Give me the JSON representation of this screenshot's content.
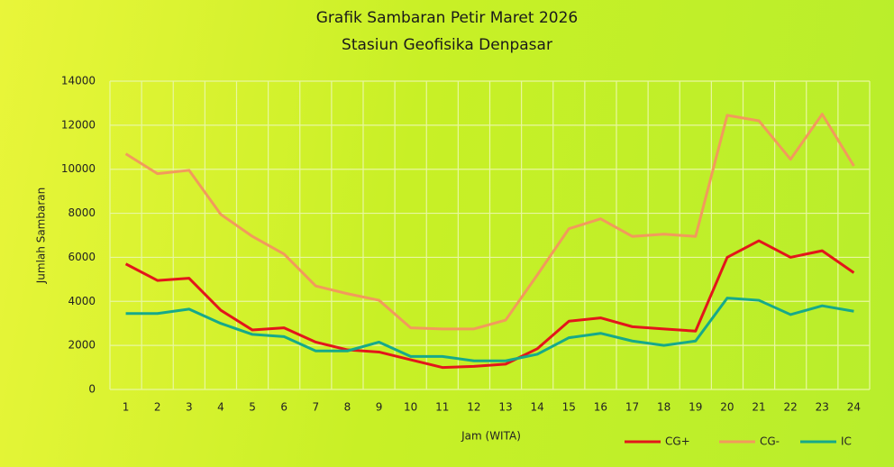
{
  "chart_data": {
    "type": "line",
    "title": "Grafik Sambaran Petir Maret 2026",
    "subtitle": "Stasiun Geofisika Denpasar",
    "x_label": "Jam (WITA)",
    "y_label": "Jumlah Sambaran",
    "categories": [
      "1",
      "2",
      "3",
      "4",
      "5",
      "6",
      "7",
      "8",
      "9",
      "10",
      "11",
      "12",
      "13",
      "14",
      "15",
      "16",
      "17",
      "18",
      "19",
      "20",
      "21",
      "22",
      "23",
      "24"
    ],
    "series": [
      {
        "name": "CG+",
        "color": "#e3161b",
        "values": [
          5700,
          4950,
          5050,
          3600,
          2700,
          2800,
          2150,
          1800,
          1700,
          1350,
          1000,
          1050,
          1150,
          1850,
          3100,
          3250,
          2850,
          2750,
          2650,
          6000,
          6750,
          6000,
          6300,
          5300
        ]
      },
      {
        "name": "CG-",
        "color": "#f29a5c",
        "values": [
          10700,
          9800,
          9950,
          7950,
          6950,
          6150,
          4700,
          4350,
          4050,
          2800,
          2750,
          2750,
          3150,
          5200,
          7300,
          7750,
          6950,
          7050,
          6950,
          12450,
          12200,
          10450,
          12500,
          10150
        ]
      },
      {
        "name": "IC",
        "color": "#16a98a",
        "values": [
          3450,
          3450,
          3650,
          3000,
          2500,
          2400,
          1750,
          1750,
          2150,
          1500,
          1500,
          1300,
          1300,
          1600,
          2350,
          2550,
          2200,
          2000,
          2200,
          4150,
          4050,
          3400,
          3800,
          3550
        ]
      }
    ],
    "ylim": [
      0,
      14000
    ],
    "yticks": [
      0,
      2000,
      4000,
      6000,
      8000,
      10000,
      12000,
      14000
    ],
    "grid": true,
    "legend": "bottom-right"
  }
}
